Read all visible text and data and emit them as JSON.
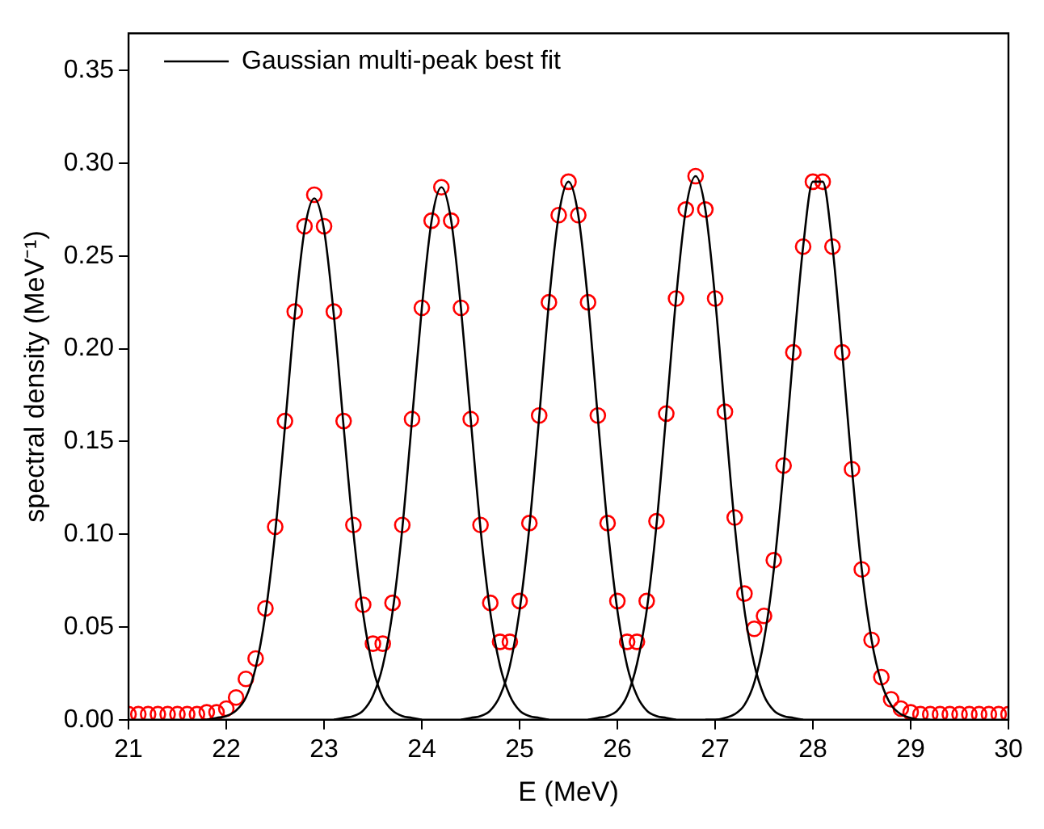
{
  "chart_data": {
    "type": "scatter",
    "xlabel": "E (MeV)",
    "ylabel": "spectral density (MeV⁻¹)",
    "xlim": [
      21,
      30
    ],
    "xticks": [
      21,
      22,
      23,
      24,
      25,
      26,
      27,
      28,
      29,
      30
    ],
    "ylim": [
      0,
      0.37
    ],
    "yticks": [
      {
        "value": 0,
        "label": "0.00"
      },
      0.05,
      {
        "value": 0.1,
        "label": "0.10"
      },
      0.15,
      {
        "value": 0.2,
        "label": "0.20"
      },
      0.25,
      {
        "value": 0.3,
        "label": "0.30"
      },
      0.35
    ],
    "grid": false,
    "legend": "top left",
    "series": [
      {
        "type": "scatter",
        "marker": "circle",
        "color": "#ff0000",
        "x": [
          21.0,
          21.1,
          21.2,
          21.3,
          21.4,
          21.5,
          21.6,
          21.7,
          21.8,
          21.9,
          22.0,
          22.1,
          22.2,
          22.3,
          22.4,
          22.5,
          22.6,
          22.7,
          22.8,
          22.9,
          23.0,
          23.1,
          23.2,
          23.3,
          23.4,
          23.5,
          23.6,
          23.7,
          23.8,
          23.9,
          24.0,
          24.1,
          24.2,
          24.3,
          24.4,
          24.5,
          24.6,
          24.7,
          24.8,
          24.9,
          25.0,
          25.1,
          25.2,
          25.3,
          25.4,
          25.5,
          25.6,
          25.7,
          25.8,
          25.9,
          26.0,
          26.1,
          26.2,
          26.3,
          26.4,
          26.5,
          26.6,
          26.7,
          26.8,
          26.9,
          27.0,
          27.1,
          27.2,
          27.3,
          27.4,
          27.5,
          27.6,
          27.7,
          27.8,
          27.9,
          28.0,
          28.1,
          28.2,
          28.3,
          28.4,
          28.5,
          28.6,
          28.7,
          28.8,
          28.9,
          29.0,
          29.1,
          29.2,
          29.3,
          29.4,
          29.5,
          29.6,
          29.7,
          29.8,
          29.9,
          30.0
        ],
        "values": [
          0.003,
          0.003,
          0.003,
          0.003,
          0.003,
          0.003,
          0.003,
          0.003,
          0.004,
          0.004,
          0.006,
          0.012,
          0.022,
          0.033,
          0.06,
          0.104,
          0.161,
          0.22,
          0.266,
          0.283,
          0.266,
          0.22,
          0.161,
          0.105,
          0.062,
          0.041,
          0.041,
          0.063,
          0.105,
          0.162,
          0.222,
          0.269,
          0.287,
          0.269,
          0.222,
          0.162,
          0.105,
          0.063,
          0.042,
          0.042,
          0.064,
          0.106,
          0.164,
          0.225,
          0.272,
          0.29,
          0.272,
          0.225,
          0.164,
          0.106,
          0.064,
          0.042,
          0.042,
          0.064,
          0.107,
          0.165,
          0.227,
          0.275,
          0.293,
          0.275,
          0.227,
          0.166,
          0.109,
          0.068,
          0.049,
          0.056,
          0.086,
          0.137,
          0.198,
          0.255,
          0.29,
          0.29,
          0.255,
          0.198,
          0.135,
          0.081,
          0.043,
          0.023,
          0.011,
          0.006,
          0.004,
          0.003,
          0.003,
          0.003,
          0.003,
          0.003,
          0.003,
          0.003,
          0.003,
          0.003,
          0.003
        ]
      },
      {
        "type": "line",
        "name": "Gaussian multi-peak best fit",
        "marker": "none",
        "color": "#000000",
        "x": [
          21.8,
          21.9,
          22.0,
          22.1,
          22.2,
          22.3,
          22.4,
          22.5,
          22.6,
          22.7,
          22.8,
          22.9,
          23.0,
          23.1,
          23.2,
          23.3,
          23.4,
          23.5,
          23.6,
          23.7,
          23.8,
          23.9,
          24.0
        ],
        "values": [
          0,
          0.001,
          0.002,
          0.005,
          0.012,
          0.028,
          0.057,
          0.101,
          0.158,
          0.218,
          0.264,
          0.281,
          0.264,
          0.218,
          0.158,
          0.101,
          0.057,
          0.028,
          0.012,
          0.005,
          0.002,
          0.001,
          0
        ]
      },
      {
        "type": "line",
        "marker": "none",
        "color": "#000000",
        "x": [
          23.1,
          23.2,
          23.3,
          23.4,
          23.5,
          23.6,
          23.7,
          23.8,
          23.9,
          24.0,
          24.1,
          24.2,
          24.3,
          24.4,
          24.5,
          24.6,
          24.7,
          24.8,
          24.9,
          25.0,
          25.1,
          25.2,
          25.3
        ],
        "values": [
          0,
          0.001,
          0.002,
          0.005,
          0.013,
          0.029,
          0.058,
          0.103,
          0.162,
          0.222,
          0.269,
          0.287,
          0.269,
          0.222,
          0.162,
          0.103,
          0.058,
          0.029,
          0.013,
          0.005,
          0.002,
          0.001,
          0
        ]
      },
      {
        "type": "line",
        "marker": "none",
        "color": "#000000",
        "x": [
          24.4,
          24.5,
          24.6,
          24.7,
          24.8,
          24.9,
          25.0,
          25.1,
          25.2,
          25.3,
          25.4,
          25.5,
          25.6,
          25.7,
          25.8,
          25.9,
          26.0,
          26.1,
          26.2,
          26.3,
          26.4,
          26.5,
          26.6
        ],
        "values": [
          0,
          0.001,
          0.002,
          0.005,
          0.013,
          0.029,
          0.059,
          0.104,
          0.163,
          0.225,
          0.272,
          0.29,
          0.272,
          0.225,
          0.163,
          0.104,
          0.059,
          0.029,
          0.013,
          0.005,
          0.002,
          0.001,
          0
        ]
      },
      {
        "type": "line",
        "marker": "none",
        "color": "#000000",
        "x": [
          25.7,
          25.8,
          25.9,
          26.0,
          26.1,
          26.2,
          26.3,
          26.4,
          26.5,
          26.6,
          26.7,
          26.8,
          26.9,
          27.0,
          27.1,
          27.2,
          27.3,
          27.4,
          27.5,
          27.6,
          27.7,
          27.8,
          27.9
        ],
        "values": [
          0,
          0.001,
          0.002,
          0.005,
          0.013,
          0.03,
          0.059,
          0.105,
          0.165,
          0.227,
          0.275,
          0.293,
          0.275,
          0.227,
          0.165,
          0.105,
          0.059,
          0.03,
          0.013,
          0.005,
          0.002,
          0.001,
          0
        ]
      },
      {
        "type": "line",
        "marker": "none",
        "color": "#000000",
        "x": [
          26.9,
          27.0,
          27.1,
          27.2,
          27.3,
          27.4,
          27.5,
          27.6,
          27.7,
          27.8,
          27.9,
          28.0,
          28.1,
          28.2,
          28.3,
          28.4,
          28.5,
          28.6,
          28.7,
          28.8,
          28.9,
          29.0,
          29.1,
          29.2
        ],
        "values": [
          0,
          0,
          0.001,
          0.003,
          0.008,
          0.02,
          0.043,
          0.081,
          0.135,
          0.198,
          0.255,
          0.29,
          0.29,
          0.255,
          0.198,
          0.135,
          0.081,
          0.043,
          0.02,
          0.008,
          0.003,
          0.001,
          0,
          0
        ]
      }
    ]
  }
}
